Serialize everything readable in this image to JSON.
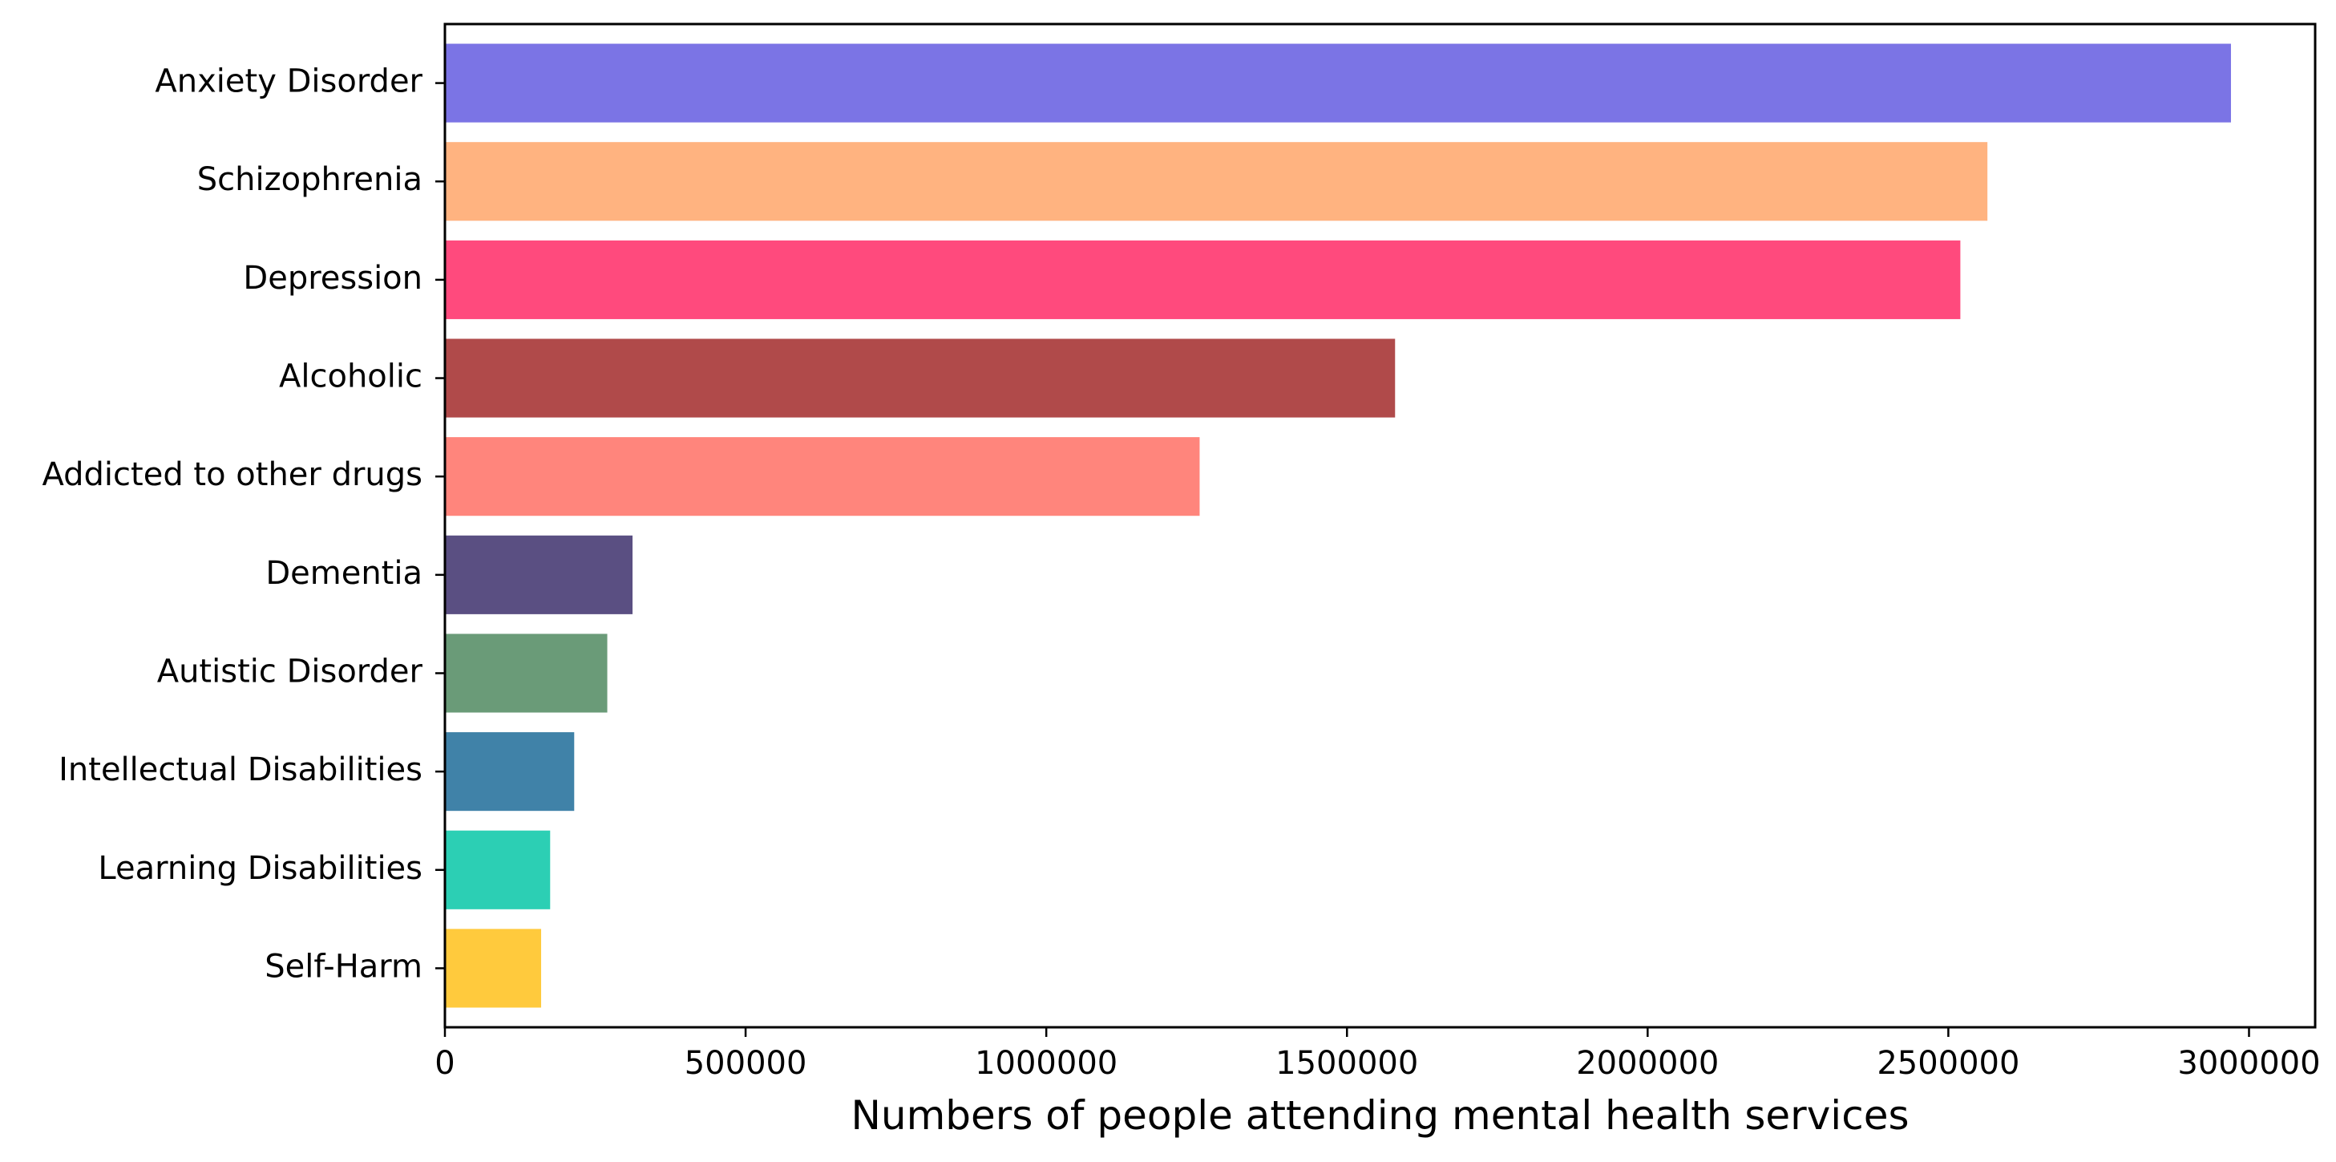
{
  "chart_data": {
    "type": "bar",
    "orientation": "horizontal",
    "title": "",
    "xlabel": "Numbers of people attending mental health services",
    "ylabel": "",
    "xlim": [
      0,
      3110000
    ],
    "xticks": [
      0,
      500000,
      1000000,
      1500000,
      2000000,
      2500000,
      3000000
    ],
    "xtick_labels": [
      "0",
      "500000",
      "1000000",
      "1500000",
      "2000000",
      "2500000",
      "3000000"
    ],
    "grid": false,
    "legend": "none",
    "categories": [
      "Anxiety Disorder",
      "Schizophrenia",
      "Depression",
      "Alcoholic",
      "Addicted to other drugs",
      "Dementia",
      "Autistic Disorder",
      "Intellectual Disabilities",
      "Learning Disabilities",
      "Self-Harm"
    ],
    "values": [
      2970000,
      2565000,
      2520000,
      1580000,
      1255000,
      312000,
      270000,
      215000,
      175000,
      160000
    ],
    "colors": [
      "#7b74e5",
      "#ffb380",
      "#ff4a7d",
      "#b04a4a",
      "#ff857c",
      "#5a4f82",
      "#6a9b78",
      "#4082a8",
      "#2ccfb4",
      "#ffca3d"
    ]
  }
}
